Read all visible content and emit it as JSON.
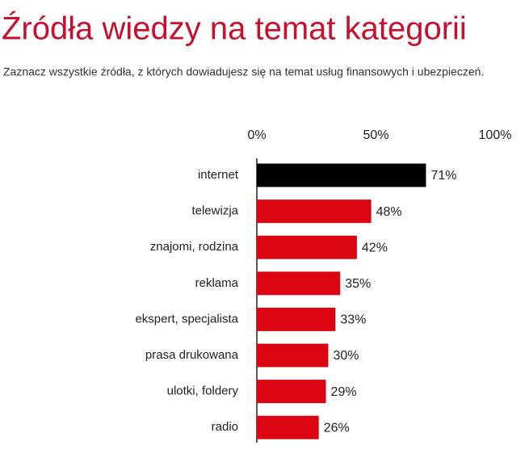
{
  "chart_data": {
    "type": "bar",
    "orientation": "horizontal",
    "title": "Źródła wiedzy na temat kategorii",
    "subtitle": "Zaznacz wszystkie źródła, z których dowiadujesz się na temat usług finansowych i ubezpieczeń.",
    "categories": [
      "internet",
      "telewizja",
      "znajomi, rodzina",
      "reklama",
      "ekspert, specjalista",
      "prasa drukowana",
      "ulotki, foldery",
      "radio"
    ],
    "values": [
      71,
      48,
      42,
      35,
      33,
      30,
      29,
      26
    ],
    "value_labels": [
      "71%",
      "48%",
      "42%",
      "35%",
      "33%",
      "30%",
      "29%",
      "26%"
    ],
    "colors": [
      "#000000",
      "#dc0613",
      "#dc0613",
      "#dc0613",
      "#dc0613",
      "#dc0613",
      "#dc0613",
      "#dc0613"
    ],
    "xlim": [
      0,
      100
    ],
    "xticks": [
      {
        "value": 0,
        "label": "0%"
      },
      {
        "value": 50,
        "label": "50%"
      },
      {
        "value": 100,
        "label": "100%"
      }
    ],
    "grid": false
  }
}
